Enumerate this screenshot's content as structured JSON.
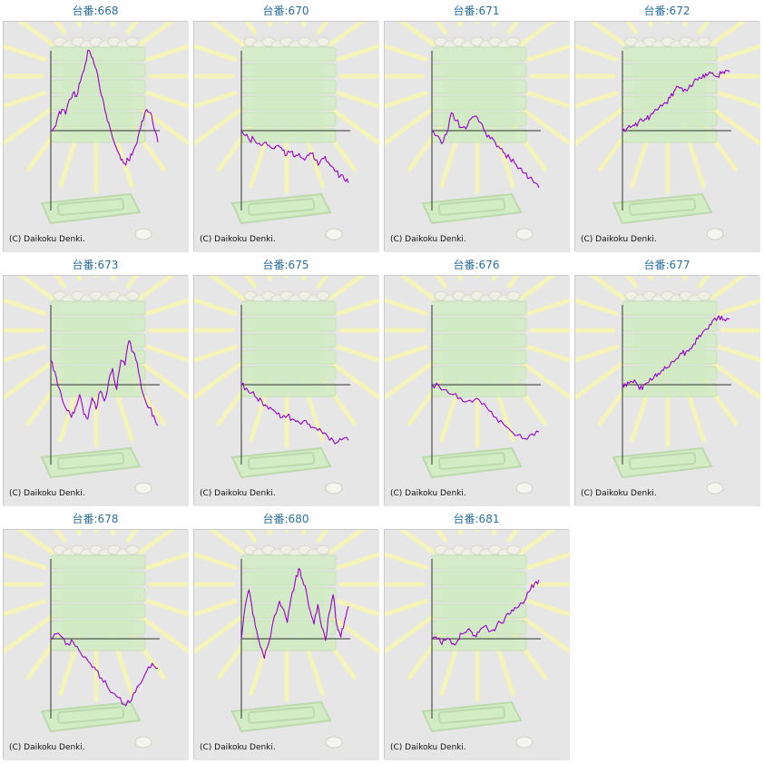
{
  "colors": {
    "line": "#9900cc",
    "axis": "#333333",
    "title": "#2a6f9e",
    "panel_bg": "#e6e6e6",
    "rays": "#f4f3b8",
    "machine": "#d3ecc6"
  },
  "chart_data": [
    {
      "type": "line",
      "title": "台番:668",
      "copyright": "(C) Daikoku Denki.",
      "values": [
        0,
        4,
        18,
        26,
        20,
        38,
        46,
        42,
        60,
        74,
        98,
        90,
        78,
        60,
        40,
        20,
        4,
        -12,
        -24,
        -36,
        -40,
        -36,
        -30,
        -18,
        0,
        12,
        26,
        22,
        2,
        -14
      ]
    },
    {
      "type": "line",
      "title": "台番:670",
      "copyright": "(C) Daikoku Denki.",
      "values": [
        0,
        -6,
        -12,
        -10,
        -16,
        -18,
        -14,
        -20,
        -22,
        -18,
        -24,
        -30,
        -26,
        -32,
        -28,
        -34,
        -30,
        -28,
        -36,
        -40,
        -34,
        -38,
        -44,
        -50,
        -56,
        -60,
        -64
      ]
    },
    {
      "type": "line",
      "title": "台番:671",
      "copyright": "(C) Daikoku Denki.",
      "values": [
        0,
        -6,
        -16,
        -4,
        22,
        12,
        4,
        2,
        14,
        18,
        10,
        -2,
        -10,
        -14,
        -22,
        -28,
        -34,
        -40,
        -46,
        -52,
        -58,
        -64,
        -70
      ]
    },
    {
      "type": "line",
      "title": "台番:672",
      "copyright": "(C) Daikoku Denki.",
      "values": [
        0,
        2,
        4,
        6,
        10,
        12,
        14,
        18,
        24,
        26,
        30,
        34,
        40,
        48,
        54,
        52,
        50,
        56,
        60,
        62,
        64,
        70,
        72,
        68,
        66,
        70,
        74,
        72
      ]
    },
    {
      "type": "line",
      "title": "台番:673",
      "copyright": "(C) Daikoku Denki.",
      "values": [
        30,
        16,
        -4,
        -22,
        -32,
        -40,
        -28,
        -12,
        -36,
        -42,
        -16,
        -30,
        -8,
        -20,
        2,
        20,
        -6,
        30,
        24,
        54,
        40,
        26,
        -4,
        -20,
        -28,
        -38,
        -50
      ]
    },
    {
      "type": "line",
      "title": "台番:675",
      "copyright": "(C) Daikoku Denki.",
      "values": [
        0,
        -4,
        -10,
        -16,
        -20,
        -26,
        -30,
        -36,
        -40,
        -38,
        -42,
        -44,
        -46,
        -48,
        -52,
        -56,
        -60,
        -64,
        -68,
        -70,
        -66,
        -68
      ]
    },
    {
      "type": "line",
      "title": "台番:676",
      "copyright": "(C) Daikoku Denki.",
      "values": [
        0,
        -2,
        -6,
        -12,
        -16,
        -20,
        -18,
        -24,
        -32,
        -40,
        -48,
        -56,
        -62,
        -66,
        -60,
        -58
      ]
    },
    {
      "type": "line",
      "title": "台番:677",
      "copyright": "(C) Daikoku Denki.",
      "values": [
        0,
        -2,
        4,
        6,
        -2,
        -6,
        2,
        8,
        10,
        14,
        18,
        20,
        24,
        28,
        32,
        38,
        40,
        44,
        50,
        56,
        62,
        68,
        74,
        80,
        82,
        84,
        78,
        80
      ]
    },
    {
      "type": "line",
      "title": "台番:678",
      "copyright": "(C) Daikoku Denki.",
      "values": [
        0,
        6,
        2,
        -6,
        -4,
        -14,
        -22,
        -30,
        -38,
        -48,
        -58,
        -66,
        -72,
        -80,
        -78,
        -66,
        -54,
        -40,
        -30,
        -36
      ]
    },
    {
      "type": "line",
      "title": "台番:680",
      "copyright": "(C) Daikoku Denki.",
      "values": [
        0,
        40,
        60,
        30,
        10,
        -10,
        -24,
        -8,
        14,
        30,
        46,
        36,
        20,
        50,
        68,
        86,
        72,
        58,
        34,
        18,
        42,
        14,
        -2,
        32,
        54,
        16,
        2,
        22,
        40
      ]
    },
    {
      "type": "line",
      "title": "台番:681",
      "copyright": "(C) Daikoku Denki.",
      "values": [
        0,
        2,
        -4,
        -2,
        0,
        -6,
        -2,
        6,
        8,
        10,
        4,
        8,
        14,
        12,
        10,
        14,
        20,
        24,
        30,
        34,
        38,
        44,
        50,
        60,
        68,
        72
      ]
    }
  ]
}
